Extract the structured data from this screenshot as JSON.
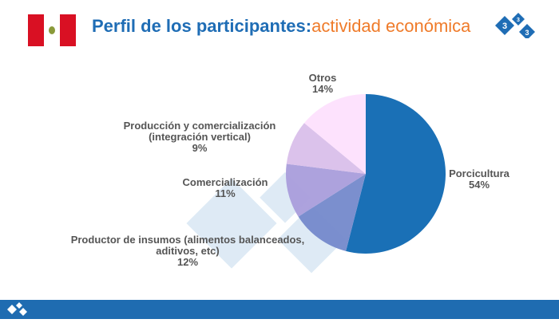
{
  "header": {
    "title": "Perfil de los participantes:",
    "subtitle": "actividad económica"
  },
  "colors": {
    "brand": "#1f6db5",
    "accent": "#ef7b2a"
  },
  "chart_data": {
    "type": "pie",
    "title": "Perfil de los participantes: actividad económica",
    "slices": [
      {
        "label": "Porcicultura",
        "value": 54,
        "pct": "54%",
        "color": "#1a70b6"
      },
      {
        "label": "Productor de insumos (alimentos balanceados, aditivos, etc)",
        "lines": [
          "Productor de insumos (alimentos balanceados,",
          "aditivos, etc)"
        ],
        "value": 12,
        "pct": "12%",
        "color": "#7489cb"
      },
      {
        "label": "Comercialización",
        "lines": [
          "Comercialización"
        ],
        "value": 11,
        "pct": "11%",
        "color": "#a99ddb"
      },
      {
        "label": "Producción y comercialización (integración vertical)",
        "lines": [
          "Producción y comercialización",
          "(integración vertical)"
        ],
        "value": 9,
        "pct": "9%",
        "color": "#d9bfea"
      },
      {
        "label": "Otros",
        "lines": [
          "Otros"
        ],
        "value": 14,
        "pct": "14%",
        "color": "#fde0fd"
      }
    ]
  }
}
